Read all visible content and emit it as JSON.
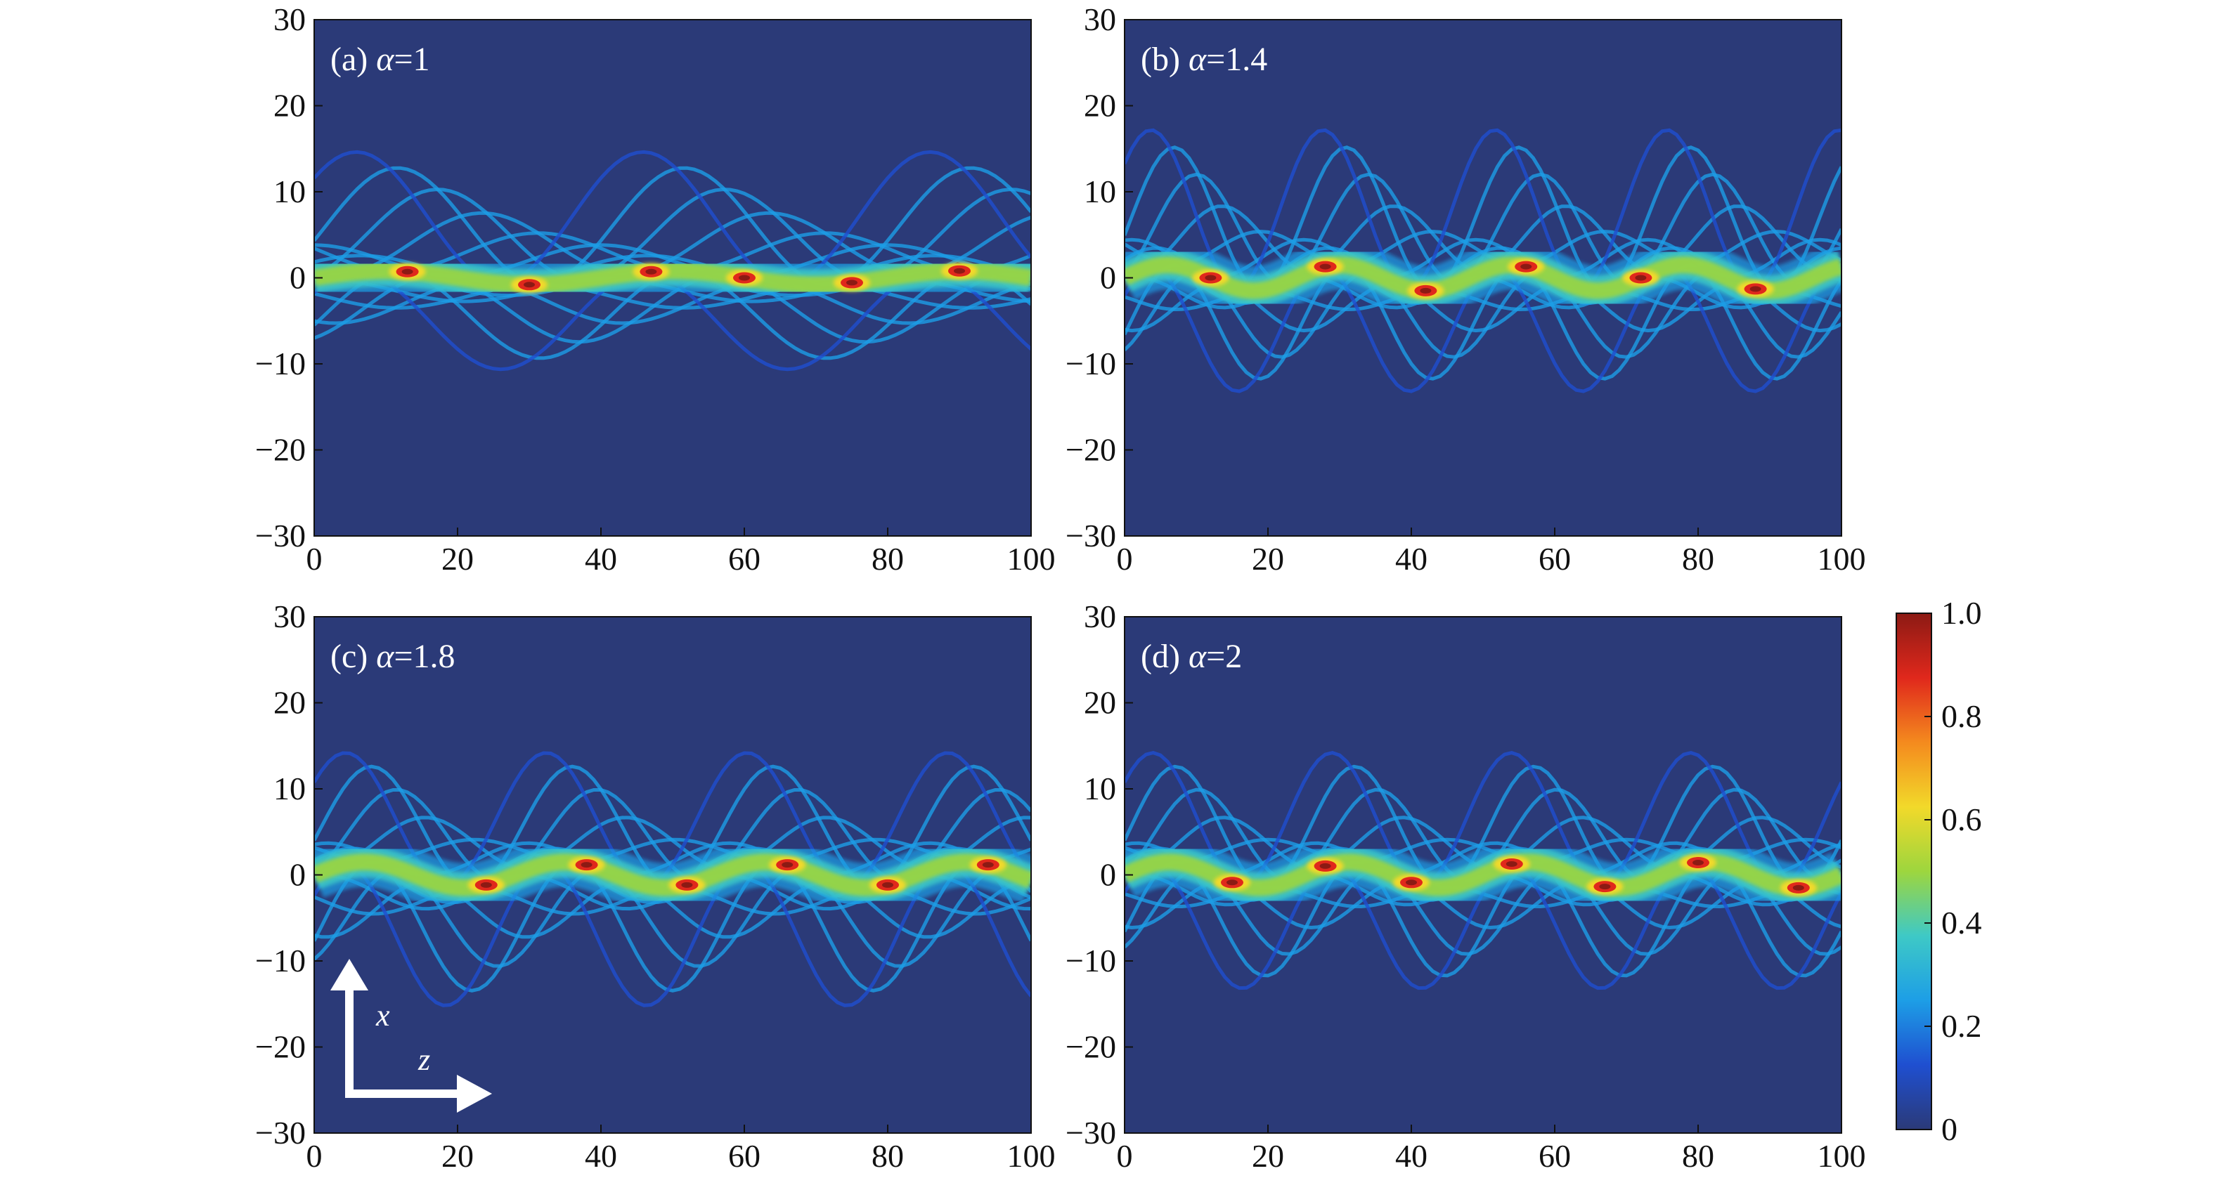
{
  "chart_data": [
    {
      "type": "heatmap",
      "panel": "(a)",
      "label_prefix": "(a) ",
      "label_symbol": "α",
      "label_value": "=1",
      "alpha": 1,
      "xlim": [
        0,
        100
      ],
      "ylim": [
        -30,
        30
      ],
      "xticks": [
        0,
        20,
        40,
        60,
        80,
        100
      ],
      "yticks": [
        30,
        20,
        10,
        0,
        -10,
        -20,
        -30
      ],
      "beam": {
        "centerline_amplitude": 0.8,
        "period": 40,
        "spread_up": 14,
        "spread_down": 10,
        "hotspots_z": [
          13,
          30,
          47,
          60,
          75,
          90
        ]
      }
    },
    {
      "type": "heatmap",
      "panel": "(b)",
      "label_prefix": "(b) ",
      "label_symbol": "α",
      "label_value": "=1.4",
      "alpha": 1.4,
      "xlim": [
        0,
        100
      ],
      "ylim": [
        -30,
        30
      ],
      "xticks": [
        0,
        20,
        40,
        60,
        80,
        100
      ],
      "yticks": [
        30,
        20,
        10,
        0,
        -10,
        -20,
        -30
      ],
      "beam": {
        "centerline_amplitude": 1.5,
        "period": 24,
        "spread_up": 16,
        "spread_down": 12,
        "hotspots_z": [
          12,
          28,
          42,
          56,
          72,
          88
        ]
      }
    },
    {
      "type": "heatmap",
      "panel": "(c)",
      "label_prefix": "(c) ",
      "label_symbol": "α",
      "label_value": "=1.8",
      "alpha": 1.8,
      "xlim": [
        0,
        100
      ],
      "ylim": [
        -30,
        30
      ],
      "xticks": [
        0,
        20,
        40,
        60,
        80,
        100
      ],
      "yticks": [
        30,
        20,
        10,
        0,
        -10,
        -20,
        -30
      ],
      "beam": {
        "centerline_amplitude": 1.5,
        "period": 28,
        "spread_up": 13,
        "spread_down": 14,
        "hotspots_z": [
          24,
          38,
          52,
          66,
          80,
          94
        ]
      }
    },
    {
      "type": "heatmap",
      "panel": "(d)",
      "label_prefix": "(d) ",
      "label_symbol": "α",
      "label_value": "=2",
      "alpha": 2,
      "xlim": [
        0,
        100
      ],
      "ylim": [
        -30,
        30
      ],
      "xticks": [
        0,
        20,
        40,
        60,
        80,
        100
      ],
      "yticks": [
        30,
        20,
        10,
        0,
        -10,
        -20,
        -30
      ],
      "beam": {
        "centerline_amplitude": 1.5,
        "period": 25,
        "spread_up": 13,
        "spread_down": 12,
        "hotspots_z": [
          15,
          28,
          40,
          54,
          67,
          80,
          94
        ]
      }
    }
  ],
  "colorbar": {
    "ticks": [
      1.0,
      0.8,
      0.6,
      0.4,
      0.2,
      0
    ],
    "tick_labels": [
      "1.0",
      "0.8",
      "0.6",
      "0.4",
      "0.2",
      "0"
    ],
    "range": [
      0,
      1
    ],
    "colormap": "jet",
    "colors": [
      "#2b3a78",
      "#1f4fd0",
      "#1d9ee6",
      "#3ec9c6",
      "#9dd63e",
      "#f2d92a",
      "#f48a1e",
      "#e0281c",
      "#8c1a14"
    ]
  },
  "inset_axes": {
    "x_axis_letter": "x",
    "z_axis_letter": "z",
    "color": "#ffffff"
  },
  "background_color": "#2b3a78"
}
